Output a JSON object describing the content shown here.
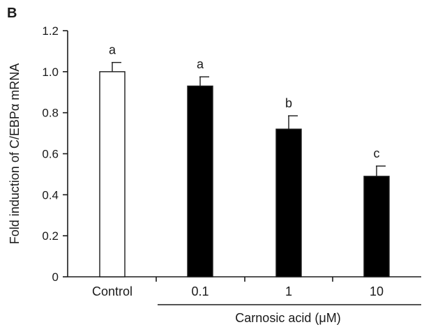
{
  "panel_label": "B",
  "chart_data": {
    "type": "bar",
    "ylabel": "Fold induction of C/EBPα mRNA",
    "group_label": "Carnosic acid (μM)",
    "categories": [
      "Control",
      "0.1",
      "1",
      "10"
    ],
    "values": [
      1.0,
      0.93,
      0.72,
      0.49
    ],
    "errors": [
      0.045,
      0.045,
      0.065,
      0.05
    ],
    "significance": [
      "a",
      "a",
      "b",
      "c"
    ],
    "bar_colors": [
      "#ffffff",
      "#000000",
      "#000000",
      "#000000"
    ],
    "ylim": [
      0,
      1.2
    ],
    "yticks": [
      "0",
      "0.2",
      "0.4",
      "0.6",
      "0.8",
      "1.0",
      "1.2"
    ],
    "grid": false,
    "legend": "none"
  }
}
